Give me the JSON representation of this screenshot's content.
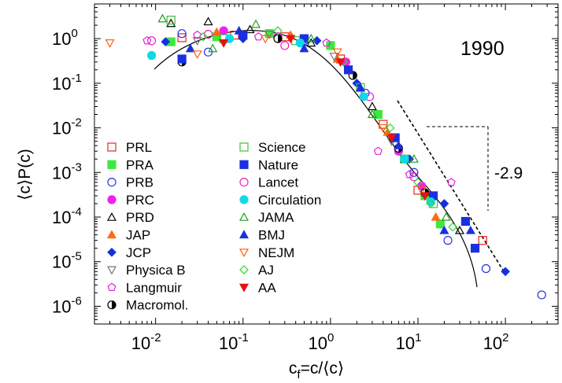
{
  "chart_data": {
    "type": "scatter",
    "title": "",
    "year_label": "1990",
    "xlabel": "c_f=c/⟨c⟩",
    "ylabel": "⟨c⟩P(c)",
    "x_scale": "log",
    "y_scale": "log",
    "xlim": [
      0.002,
      400
    ],
    "ylim": [
      4e-07,
      6
    ],
    "x_ticks": [
      {
        "value": 0.01,
        "mantissa": "10",
        "exp": "-2"
      },
      {
        "value": 0.1,
        "mantissa": "10",
        "exp": "-1"
      },
      {
        "value": 1,
        "mantissa": "10",
        "exp": "0"
      },
      {
        "value": 10,
        "mantissa": "10",
        "exp": "1"
      },
      {
        "value": 100,
        "mantissa": "10",
        "exp": "2"
      }
    ],
    "y_ticks": [
      {
        "value": 1,
        "mantissa": "10",
        "exp": "0"
      },
      {
        "value": 0.1,
        "mantissa": "10",
        "exp": "-1"
      },
      {
        "value": 0.01,
        "mantissa": "10",
        "exp": "-2"
      },
      {
        "value": 0.001,
        "mantissa": "10",
        "exp": "-3"
      },
      {
        "value": 0.0001,
        "mantissa": "10",
        "exp": "-4"
      },
      {
        "value": 1e-05,
        "mantissa": "10",
        "exp": "-5"
      },
      {
        "value": 1e-06,
        "mantissa": "10",
        "exp": "-6"
      }
    ],
    "slope_label": "-2.9",
    "legend_position": "bottom-left",
    "series": [
      {
        "name": "PRL",
        "marker": "square-open",
        "color": "#e8231b",
        "points": [
          [
            0.02,
            1.05
          ],
          [
            0.08,
            1.2
          ],
          [
            0.3,
            1.1
          ],
          [
            1.3,
            0.35
          ],
          [
            4.0,
            0.012
          ],
          [
            10.0,
            0.0004
          ],
          [
            55,
            3e-05
          ]
        ]
      },
      {
        "name": "PRA",
        "marker": "square-filled",
        "color": "#3ee83e",
        "points": [
          [
            0.015,
            0.85
          ],
          [
            0.05,
            1.1
          ],
          [
            0.2,
            1.3
          ],
          [
            1.0,
            0.7
          ],
          [
            3.5,
            0.02
          ],
          [
            12,
            0.0003
          ],
          [
            18,
            7e-05
          ]
        ]
      },
      {
        "name": "PRB",
        "marker": "circle-open",
        "color": "#2233dd",
        "points": [
          [
            0.02,
            1.3
          ],
          [
            0.04,
            0.5
          ],
          [
            0.5,
            0.9
          ],
          [
            2.5,
            0.06
          ],
          [
            9,
            0.001
          ],
          [
            22,
            3e-05
          ],
          [
            60,
            7e-06
          ],
          [
            260,
            1.8e-06
          ]
        ]
      },
      {
        "name": "PRC",
        "marker": "circle-filled",
        "color": "#f020f0",
        "points": [
          [
            0.06,
            1.5
          ],
          [
            0.25,
            1.1
          ],
          [
            1.5,
            0.3
          ],
          [
            6,
            0.003
          ],
          [
            11,
            0.0005
          ]
        ]
      },
      {
        "name": "PRD",
        "marker": "triangle-open",
        "color": "#000000",
        "points": [
          [
            0.015,
            2.2
          ],
          [
            0.04,
            2.4
          ],
          [
            0.12,
            1.6
          ],
          [
            0.6,
            0.8
          ],
          [
            3,
            0.03
          ],
          [
            7,
            0.002
          ],
          [
            30,
            5e-05
          ]
        ]
      },
      {
        "name": "JAP",
        "marker": "triangle-filled",
        "color": "#ff6a10",
        "points": [
          [
            0.05,
            1.4
          ],
          [
            0.35,
            1.2
          ],
          [
            1.2,
            0.35
          ],
          [
            4.5,
            0.008
          ],
          [
            16,
            0.0001
          ]
        ]
      },
      {
        "name": "JCP",
        "marker": "diamond-filled",
        "color": "#1530e0",
        "points": [
          [
            0.013,
            0.85
          ],
          [
            0.1,
            1.0
          ],
          [
            0.7,
            0.9
          ],
          [
            2,
            0.1
          ],
          [
            8,
            0.002
          ],
          [
            20,
            0.0002
          ],
          [
            100,
            6e-06
          ]
        ]
      },
      {
        "name": "Physica B",
        "marker": "triangle-down-open",
        "color": "#777777",
        "points": [
          [
            0.03,
            0.9
          ],
          [
            0.2,
            1.25
          ],
          [
            1.1,
            0.4
          ],
          [
            5,
            0.005
          ]
        ]
      },
      {
        "name": "Langmuir",
        "marker": "pentagon-open",
        "color": "#e020e0",
        "points": [
          [
            0.008,
            0.9
          ],
          [
            0.03,
            1.2
          ],
          [
            0.15,
            1.1
          ],
          [
            0.9,
            0.8
          ],
          [
            3.5,
            0.003
          ],
          [
            8,
            0.0009
          ],
          [
            24,
            0.0006
          ]
        ]
      },
      {
        "name": "Macromol.",
        "marker": "half-circle",
        "color": "#000000",
        "points": [
          [
            0.02,
            0.3
          ],
          [
            0.25,
            1.0
          ],
          [
            1.8,
            0.15
          ],
          [
            6,
            0.0035
          ],
          [
            12,
            0.00035
          ]
        ]
      },
      {
        "name": "Science",
        "marker": "square-open",
        "color": "#3ec03e",
        "points": [
          [
            0.015,
            2.6
          ],
          [
            0.06,
            1.0
          ],
          [
            0.4,
            0.9
          ],
          [
            2.2,
            0.08
          ],
          [
            7,
            0.002
          ],
          [
            15,
            0.0002
          ]
        ]
      },
      {
        "name": "Nature",
        "marker": "square-filled",
        "color": "#1a30e0",
        "points": [
          [
            0.02,
            0.35
          ],
          [
            0.1,
            1.2
          ],
          [
            0.5,
            1.0
          ],
          [
            1.6,
            0.2
          ],
          [
            5.5,
            0.006
          ],
          [
            15,
            0.0003
          ],
          [
            35,
            8e-05
          ],
          [
            45,
            2e-05
          ]
        ]
      },
      {
        "name": "Lancet",
        "marker": "circle-open",
        "color": "#f020c0",
        "points": [
          [
            0.009,
            0.9
          ],
          [
            0.04,
            1.25
          ],
          [
            0.3,
            0.7
          ],
          [
            2.8,
            0.05
          ],
          [
            9,
            0.0008
          ]
        ]
      },
      {
        "name": "Circulation",
        "marker": "circle-filled",
        "color": "#10d8e8",
        "points": [
          [
            0.009,
            0.42
          ],
          [
            0.07,
            1.0
          ],
          [
            0.45,
            0.8
          ],
          [
            2.4,
            0.05
          ],
          [
            7,
            0.002
          ],
          [
            14,
            0.00022
          ]
        ]
      },
      {
        "name": "JAMA",
        "marker": "triangle-open",
        "color": "#20a020",
        "points": [
          [
            0.012,
            2.8
          ],
          [
            0.045,
            0.6
          ],
          [
            0.14,
            2.1
          ],
          [
            0.6,
            1.0
          ],
          [
            3,
            0.02
          ],
          [
            9,
            0.002
          ],
          [
            21,
            0.0001
          ]
        ]
      },
      {
        "name": "BMJ",
        "marker": "triangle-filled",
        "color": "#1a30e0",
        "points": [
          [
            0.025,
            0.6
          ],
          [
            0.09,
            1.5
          ],
          [
            0.5,
            0.6
          ],
          [
            2.2,
            0.08
          ],
          [
            6,
            0.004
          ],
          [
            20,
            5e-05
          ],
          [
            40,
            5e-05
          ]
        ]
      },
      {
        "name": "NEJM",
        "marker": "triangle-down-open",
        "color": "#ff6010",
        "points": [
          [
            0.003,
            0.8
          ],
          [
            0.03,
            0.45
          ],
          [
            0.18,
            1.0
          ],
          [
            1.2,
            0.5
          ],
          [
            4,
            0.01
          ],
          [
            11,
            0.0004
          ]
        ]
      },
      {
        "name": "AJ",
        "marker": "diamond-open",
        "color": "#30d830",
        "points": [
          [
            0.035,
            1.1
          ],
          [
            0.25,
            1.5
          ],
          [
            1.4,
            0.3
          ],
          [
            4.8,
            0.01
          ],
          [
            10,
            0.0006
          ],
          [
            14,
            0.0002
          ],
          [
            25,
            6e-05
          ]
        ]
      },
      {
        "name": "AA",
        "marker": "triangle-down-filled",
        "color": "#e81010",
        "points": [
          [
            0.06,
            0.8
          ],
          [
            0.35,
            1.0
          ],
          [
            1.3,
            0.3
          ],
          [
            5,
            0.006
          ],
          [
            12,
            0.0003
          ]
        ]
      }
    ]
  }
}
